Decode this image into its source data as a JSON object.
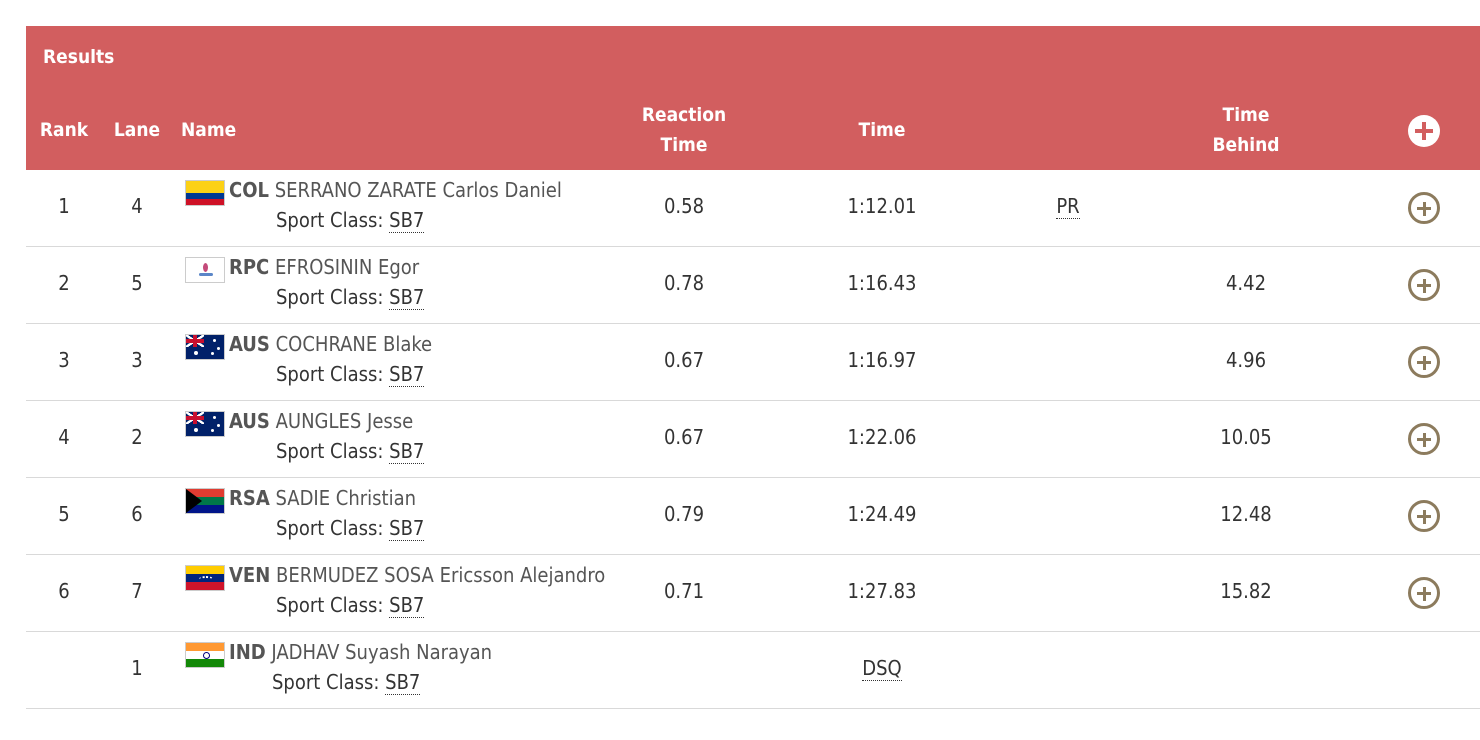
{
  "table": {
    "title": "Results",
    "headers": {
      "rank": "Rank",
      "lane": "Lane",
      "name": "Name",
      "reaction": "Reaction Time",
      "time": "Time",
      "behind": "Time Behind"
    },
    "sport_class_label": "Sport Class:",
    "rows": [
      {
        "rank": "1",
        "lane": "4",
        "noc": "COL",
        "athlete": "SERRANO ZARATE Carlos Daniel",
        "sport_class": "SB7",
        "reaction": "0.58",
        "time": "1:12.01",
        "record": "PR",
        "behind": ""
      },
      {
        "rank": "2",
        "lane": "5",
        "noc": "RPC",
        "athlete": "EFROSININ Egor",
        "sport_class": "SB7",
        "reaction": "0.78",
        "time": "1:16.43",
        "record": "",
        "behind": "4.42"
      },
      {
        "rank": "3",
        "lane": "3",
        "noc": "AUS",
        "athlete": "COCHRANE Blake",
        "sport_class": "SB7",
        "reaction": "0.67",
        "time": "1:16.97",
        "record": "",
        "behind": "4.96"
      },
      {
        "rank": "4",
        "lane": "2",
        "noc": "AUS",
        "athlete": "AUNGLES Jesse",
        "sport_class": "SB7",
        "reaction": "0.67",
        "time": "1:22.06",
        "record": "",
        "behind": "10.05"
      },
      {
        "rank": "5",
        "lane": "6",
        "noc": "RSA",
        "athlete": "SADIE Christian",
        "sport_class": "SB7",
        "reaction": "0.79",
        "time": "1:24.49",
        "record": "",
        "behind": "12.48"
      },
      {
        "rank": "6",
        "lane": "7",
        "noc": "VEN",
        "athlete": "BERMUDEZ SOSA Ericsson Alejandro",
        "sport_class": "SB7",
        "reaction": "0.71",
        "time": "1:27.83",
        "record": "",
        "behind": "15.82"
      },
      {
        "rank": "",
        "lane": "1",
        "noc": "IND",
        "athlete": "JADHAV Suyash Narayan",
        "sport_class": "SB7",
        "reaction": "",
        "time": "DSQ",
        "record": "",
        "behind": ""
      }
    ]
  },
  "colors": {
    "header_bg": "#d25e5f",
    "plus_icon": "#8c7b5d",
    "divider": "#d9d9d9"
  },
  "icons": {
    "expand_all": "plus-circle-icon",
    "expand_row": "plus-circle-outline-icon"
  }
}
